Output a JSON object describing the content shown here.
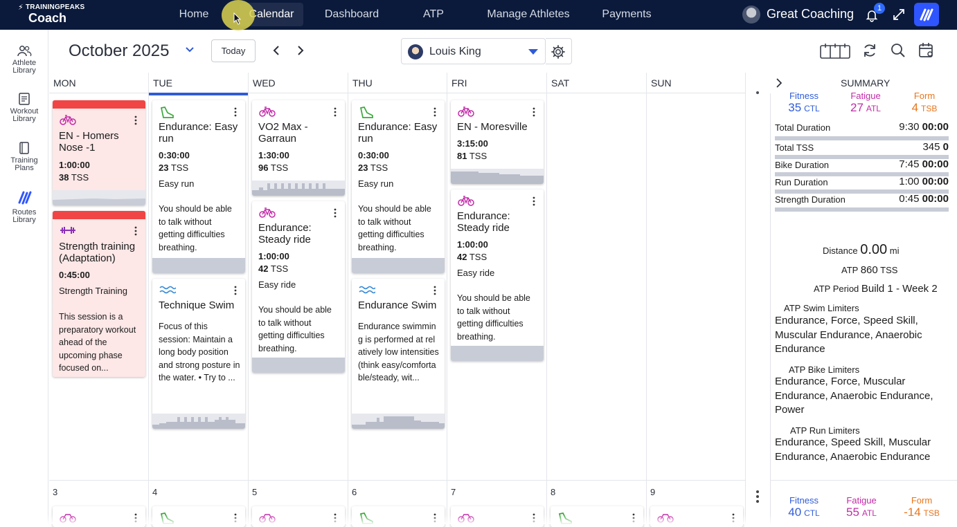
{
  "app": {
    "logo_small": "TRAININGPEAKS",
    "logo_big": "Coach"
  },
  "nav": {
    "items": [
      "Home",
      "Calendar",
      "Dashboard",
      "ATP",
      "Manage Athletes",
      "Payments"
    ],
    "active": "Calendar"
  },
  "user": {
    "name": "Great Coaching",
    "notifications": "1"
  },
  "leftnav": {
    "items": [
      {
        "line1": "Athlete",
        "line2": "Library"
      },
      {
        "line1": "Workout",
        "line2": "Library"
      },
      {
        "line1": "Training",
        "line2": "Plans"
      },
      {
        "line1": "Routes",
        "line2": "Library"
      }
    ]
  },
  "toolbar": {
    "month": "October 2025",
    "today_label": "Today",
    "athlete": "Louis King"
  },
  "days": [
    "MON",
    "TUE",
    "WED",
    "THU",
    "FRI",
    "SAT",
    "SUN"
  ],
  "week2_days": [
    "3",
    "4",
    "5",
    "6",
    "7",
    "8",
    "9"
  ],
  "cards": {
    "mon1": {
      "title": "EN - Homers Nose -1",
      "duration": "1:00:00",
      "tss": "38",
      "tss_unit": "TSS"
    },
    "mon2": {
      "title": "Strength training (Adaptation)",
      "duration": "0:45:00",
      "type": "Strength Training",
      "desc": "This session is a preparatory workout ahead of the upcoming phase focused on..."
    },
    "tue1": {
      "title": "Endurance: Easy run",
      "duration": "0:30:00",
      "tss": "23",
      "tss_unit": "TSS",
      "type": "Easy run",
      "desc": "You should be able to talk without getting difficulties breathing."
    },
    "tue2": {
      "title": "Technique Swim",
      "desc": "Focus of this session: Maintain a long body position and strong posture in the water. • Try to ..."
    },
    "wed1": {
      "title": "VO2 Max - Garraun",
      "duration": "1:30:00",
      "tss": "96",
      "tss_unit": "TSS"
    },
    "wed2": {
      "title": "Endurance: Steady ride",
      "duration": "1:00:00",
      "tss": "42",
      "tss_unit": "TSS",
      "type": "Easy ride",
      "desc": "You should be able to talk without getting difficulties breathing."
    },
    "thu1": {
      "title": "Endurance: Easy run",
      "duration": "0:30:00",
      "tss": "23",
      "tss_unit": "TSS",
      "type": "Easy run",
      "desc": "You should be able to talk without getting difficulties breathing."
    },
    "thu2": {
      "title": "Endurance Swim",
      "desc": "Endurance swimming is performed at relatively low intensities (think easy/comfortable/steady, wit..."
    },
    "fri1": {
      "title": "EN - Moresville",
      "duration": "3:15:00",
      "tss": "81",
      "tss_unit": "TSS"
    },
    "fri2": {
      "title": "Endurance: Steady ride",
      "duration": "1:00:00",
      "tss": "42",
      "tss_unit": "TSS",
      "type": "Easy ride",
      "desc": "You should be able to talk without getting difficulties breathing."
    }
  },
  "summary": {
    "header": "SUMMARY",
    "fitness": {
      "label": "Fitness",
      "value": "35",
      "unit": "CTL"
    },
    "fatigue": {
      "label": "Fatigue",
      "value": "27",
      "unit": "ATL"
    },
    "form": {
      "label": "Form",
      "value": "4",
      "unit": "TSB"
    },
    "rows": [
      {
        "label": "Total Duration",
        "planned": "9:30",
        "completed": "00:00"
      },
      {
        "label": "Total TSS",
        "planned": "345",
        "completed": "0"
      },
      {
        "label": "Bike Duration",
        "planned": "7:45",
        "completed": "00:00"
      },
      {
        "label": "Run Duration",
        "planned": "1:00",
        "completed": "00:00"
      },
      {
        "label": "Strength Duration",
        "planned": "0:45",
        "completed": "00:00"
      }
    ],
    "distance_label": "Distance",
    "distance_value": "0.00",
    "distance_unit": "mi",
    "atp_label": "ATP",
    "atp_value": "860",
    "atp_unit": "TSS",
    "atp_period_label": "ATP Period",
    "atp_period_value": "Build 1 - Week 2",
    "swim_lim_title": "ATP Swim Limiters",
    "swim_lim": "Endurance, Force, Speed Skill, Muscular Endurance, Anaerobic Endurance",
    "bike_lim_title": "ATP Bike Limiters",
    "bike_lim": "Endurance, Force, Muscular Endurance, Anaerobic Endurance, Power",
    "run_lim_title": "ATP Run Limiters",
    "run_lim": "Endurance, Speed Skill, Muscular Endurance, Anaerobic Endurance"
  },
  "summary2": {
    "fitness": {
      "label": "Fitness",
      "value": "40",
      "unit": "CTL"
    },
    "fatigue": {
      "label": "Fatigue",
      "value": "55",
      "unit": "ATL"
    },
    "form": {
      "label": "Form",
      "value": "-14",
      "unit": "TSB"
    }
  },
  "colors": {
    "topbar": "#0b1a3b",
    "accent": "#2f5bd8",
    "fitness": "#2f5bd8",
    "fatigue": "#c22aa8",
    "form": "#e8741c",
    "bike_icon": "#c22aa8",
    "run_icon": "#3aa83a",
    "swim_icon": "#3a8bd8",
    "strength_icon": "#8a2fb8",
    "missed_red": "#f14545"
  }
}
